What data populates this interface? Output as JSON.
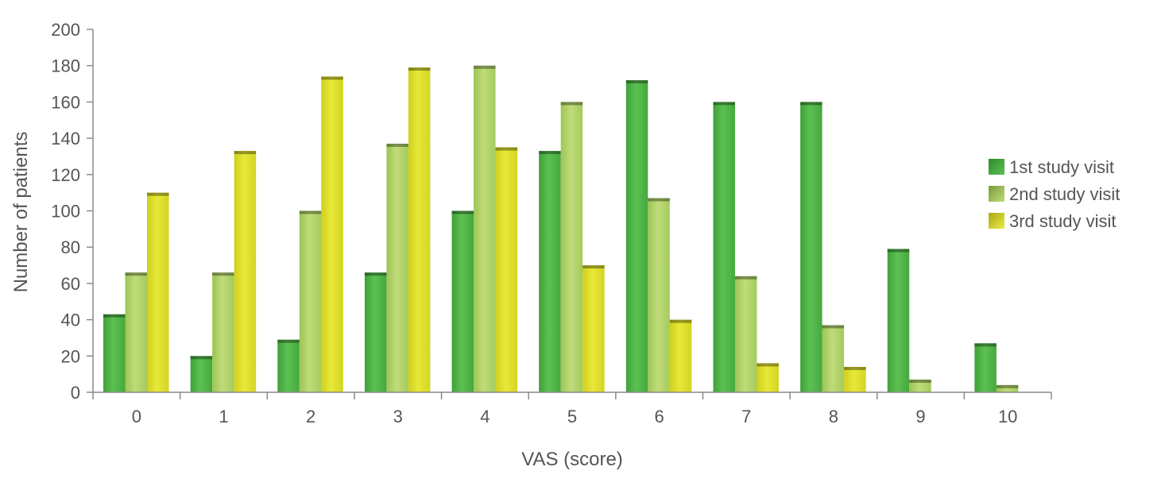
{
  "chart_data": {
    "type": "bar",
    "title": "",
    "xlabel": "VAS (score)",
    "ylabel": "Number of patients",
    "ylim": [
      0,
      200
    ],
    "yticks": [
      0,
      20,
      40,
      60,
      80,
      100,
      120,
      140,
      160,
      180,
      200
    ],
    "categories": [
      "0",
      "1",
      "2",
      "3",
      "4",
      "5",
      "6",
      "7",
      "8",
      "9",
      "10"
    ],
    "series": [
      {
        "name": "1st study visit",
        "color": "#52b848",
        "values": [
          43,
          20,
          29,
          66,
          100,
          133,
          172,
          160,
          160,
          79,
          27
        ]
      },
      {
        "name": "2nd study visit",
        "color": "#b4d56a",
        "values": [
          66,
          66,
          100,
          137,
          180,
          160,
          107,
          64,
          37,
          7,
          4
        ]
      },
      {
        "name": "3rd study visit",
        "color": "#e0e02a",
        "values": [
          110,
          133,
          174,
          179,
          135,
          70,
          40,
          16,
          14,
          0,
          0
        ]
      }
    ],
    "grid": false,
    "legend": "right"
  }
}
